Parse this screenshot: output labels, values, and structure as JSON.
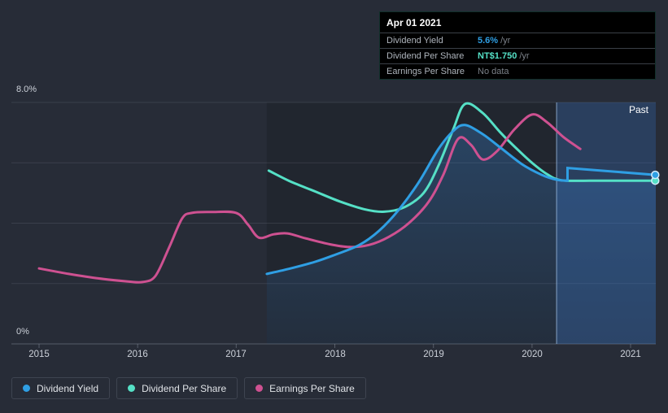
{
  "header_tooltip": {
    "date": "Apr 01 2021",
    "rows": [
      {
        "label": "Dividend Yield",
        "value": "5.6%",
        "unit": "/yr",
        "color": "#2f9fe4"
      },
      {
        "label": "Dividend Per Share",
        "value": "NT$1.750",
        "unit": "/yr",
        "color": "#55e0c6"
      },
      {
        "label": "Earnings Per Share",
        "value": "No data",
        "unit": "",
        "color": "#7b8189"
      }
    ]
  },
  "axes": {
    "y_top_label": "8.0%",
    "y_bottom_label": "0%",
    "x_labels": [
      "2015",
      "2016",
      "2017",
      "2018",
      "2019",
      "2020",
      "2021"
    ]
  },
  "region_label": "Past",
  "legend": [
    {
      "label": "Dividend Yield",
      "color": "#2f9fe4"
    },
    {
      "label": "Dividend Per Share",
      "color": "#55e0c6"
    },
    {
      "label": "Earnings Per Share",
      "color": "#ce5191"
    }
  ],
  "colors": {
    "background": "#272c37",
    "grid": "rgba(195,205,220,0.12)",
    "axis": "rgba(195,205,220,0.30)",
    "past_band": "rgba(62,124,204,0.30)",
    "area_fill": "#3d8bdd"
  },
  "chart_data": {
    "type": "line",
    "title": "",
    "xlabel": "",
    "ylabel": "",
    "xlim": [
      2014.72,
      2021.26
    ],
    "ylim": [
      0,
      8
    ],
    "x_ticks": [
      2015,
      2016,
      2017,
      2018,
      2019,
      2020,
      2021
    ],
    "grid_values": [
      0,
      2,
      4,
      6,
      8
    ],
    "y_tick_labels_shown": {
      "8": "8.0%",
      "0": "0%"
    },
    "grid": true,
    "legend_position": "bottom-left",
    "past_region_start": 2020.25,
    "series": [
      {
        "name": "Dividend Yield",
        "color": "#2f9fe4",
        "area": true,
        "points": [
          [
            2017.31,
            2.32
          ],
          [
            2017.55,
            2.5
          ],
          [
            2017.8,
            2.72
          ],
          [
            2018.0,
            2.95
          ],
          [
            2018.25,
            3.28
          ],
          [
            2018.45,
            3.75
          ],
          [
            2018.65,
            4.45
          ],
          [
            2018.85,
            5.35
          ],
          [
            2019.05,
            6.45
          ],
          [
            2019.2,
            7.05
          ],
          [
            2019.32,
            7.25
          ],
          [
            2019.5,
            6.95
          ],
          [
            2019.7,
            6.45
          ],
          [
            2019.9,
            5.95
          ],
          [
            2020.1,
            5.6
          ],
          [
            2020.25,
            5.44
          ],
          [
            2020.36,
            5.41
          ]
        ],
        "step_segment": [
          [
            2020.36,
            5.41
          ],
          [
            2020.36,
            5.83
          ],
          [
            2021.25,
            5.6
          ]
        ],
        "end_marker": [
          2021.25,
          5.6
        ],
        "end_value_label": "5.6% /yr"
      },
      {
        "name": "Dividend Per Share",
        "color": "#55e0c6",
        "area": false,
        "points": [
          [
            2017.33,
            5.74
          ],
          [
            2017.55,
            5.38
          ],
          [
            2017.8,
            5.05
          ],
          [
            2018.05,
            4.72
          ],
          [
            2018.3,
            4.46
          ],
          [
            2018.5,
            4.38
          ],
          [
            2018.7,
            4.52
          ],
          [
            2018.9,
            5.0
          ],
          [
            2019.05,
            5.9
          ],
          [
            2019.2,
            7.1
          ],
          [
            2019.32,
            7.95
          ],
          [
            2019.5,
            7.65
          ],
          [
            2019.68,
            7.0
          ],
          [
            2019.85,
            6.45
          ],
          [
            2020.0,
            6.0
          ],
          [
            2020.15,
            5.63
          ],
          [
            2020.3,
            5.42
          ],
          [
            2020.6,
            5.41
          ],
          [
            2020.9,
            5.41
          ],
          [
            2021.25,
            5.41
          ]
        ],
        "end_marker": [
          2021.25,
          5.41
        ],
        "end_value_label": "NT$1.750 /yr"
      },
      {
        "name": "Earnings Per Share",
        "color": "#ce5191",
        "area": false,
        "points": [
          [
            2015.0,
            2.5
          ],
          [
            2015.3,
            2.32
          ],
          [
            2015.6,
            2.17
          ],
          [
            2015.9,
            2.07
          ],
          [
            2016.05,
            2.05
          ],
          [
            2016.18,
            2.25
          ],
          [
            2016.32,
            3.2
          ],
          [
            2016.45,
            4.15
          ],
          [
            2016.55,
            4.34
          ],
          [
            2016.75,
            4.37
          ],
          [
            2017.0,
            4.34
          ],
          [
            2017.12,
            3.95
          ],
          [
            2017.23,
            3.52
          ],
          [
            2017.38,
            3.63
          ],
          [
            2017.52,
            3.66
          ],
          [
            2017.7,
            3.5
          ],
          [
            2017.95,
            3.3
          ],
          [
            2018.15,
            3.21
          ],
          [
            2018.35,
            3.28
          ],
          [
            2018.55,
            3.55
          ],
          [
            2018.75,
            4.0
          ],
          [
            2018.95,
            4.7
          ],
          [
            2019.1,
            5.6
          ],
          [
            2019.25,
            6.79
          ],
          [
            2019.38,
            6.6
          ],
          [
            2019.5,
            6.11
          ],
          [
            2019.65,
            6.4
          ],
          [
            2019.82,
            7.1
          ],
          [
            2020.0,
            7.6
          ],
          [
            2020.15,
            7.35
          ],
          [
            2020.32,
            6.85
          ],
          [
            2020.49,
            6.46
          ]
        ],
        "end_value_label": "No data"
      }
    ]
  }
}
